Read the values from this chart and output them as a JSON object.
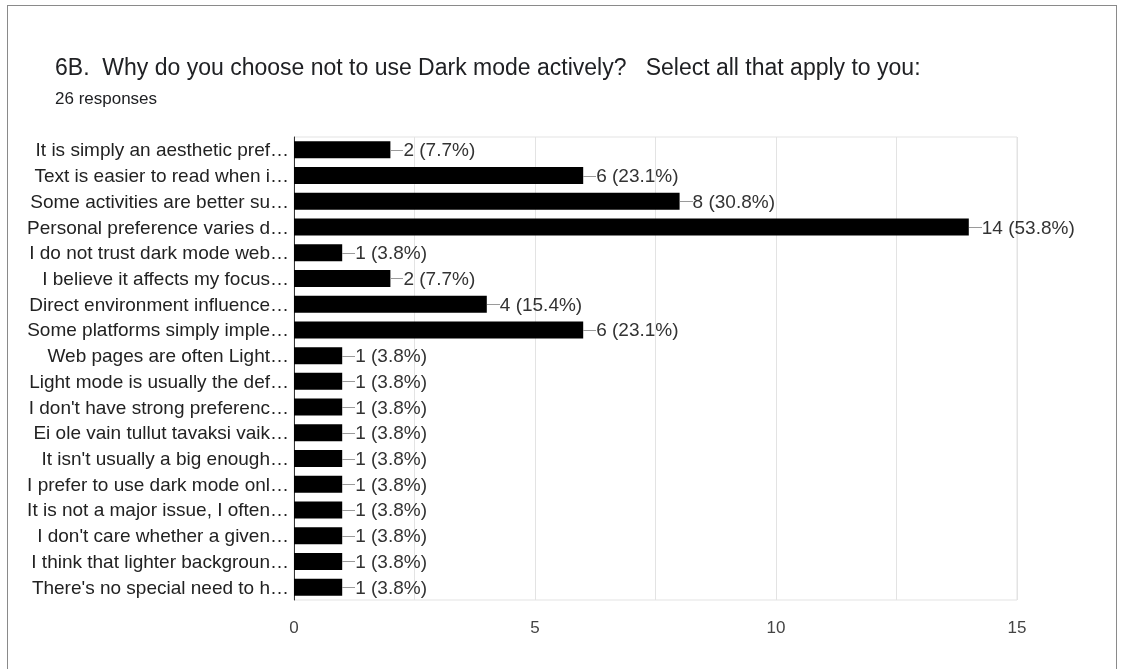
{
  "chart_data": {
    "type": "bar",
    "orientation": "horizontal",
    "title": "6B.  Why do you choose not to use Dark mode actively?   Select all that apply to you:",
    "subtitle": "26 responses",
    "categories": [
      "It is simply an aesthetic pref…",
      "Text is easier to read when i…",
      "Some activities are better su…",
      "Personal preference varies d…",
      "I do not trust dark mode web…",
      "I believe it affects my focus…",
      "Direct environment influence…",
      "Some platforms simply imple…",
      "Web pages are often Light…",
      "Light mode is usually the def…",
      "I don't have strong preferenc…",
      "Ei ole vain tullut tavaksi vaik…",
      "It isn't usually a big enough…",
      "I prefer to use dark mode onl…",
      "It is not a major issue, I often…",
      "I don't care whether a given…",
      "I think that lighter backgroun…",
      "There's no special need to h…"
    ],
    "series": [
      {
        "color": "#000000",
        "values": [
          2,
          6,
          8,
          14,
          1,
          2,
          4,
          6,
          1,
          1,
          1,
          1,
          1,
          1,
          1,
          1,
          1,
          1
        ],
        "value_labels": [
          "2 (7.7%)",
          "6 (23.1%)",
          "8 (30.8%)",
          "14 (53.8%)",
          "1 (3.8%)",
          "2 (7.7%)",
          "4 (15.4%)",
          "6 (23.1%)",
          "1 (3.8%)",
          "1 (3.8%)",
          "1 (3.8%)",
          "1 (3.8%)",
          "1 (3.8%)",
          "1 (3.8%)",
          "1 (3.8%)",
          "1 (3.8%)",
          "1 (3.8%)",
          "1 (3.8%)"
        ]
      }
    ],
    "xlim": [
      0,
      15
    ],
    "xticks": [
      0,
      {
        "value": 2.5,
        "label": null
      },
      5,
      {
        "value": 7.5,
        "label": null
      },
      10,
      {
        "value": 12.5,
        "label": null
      },
      15
    ],
    "grid": "x"
  }
}
